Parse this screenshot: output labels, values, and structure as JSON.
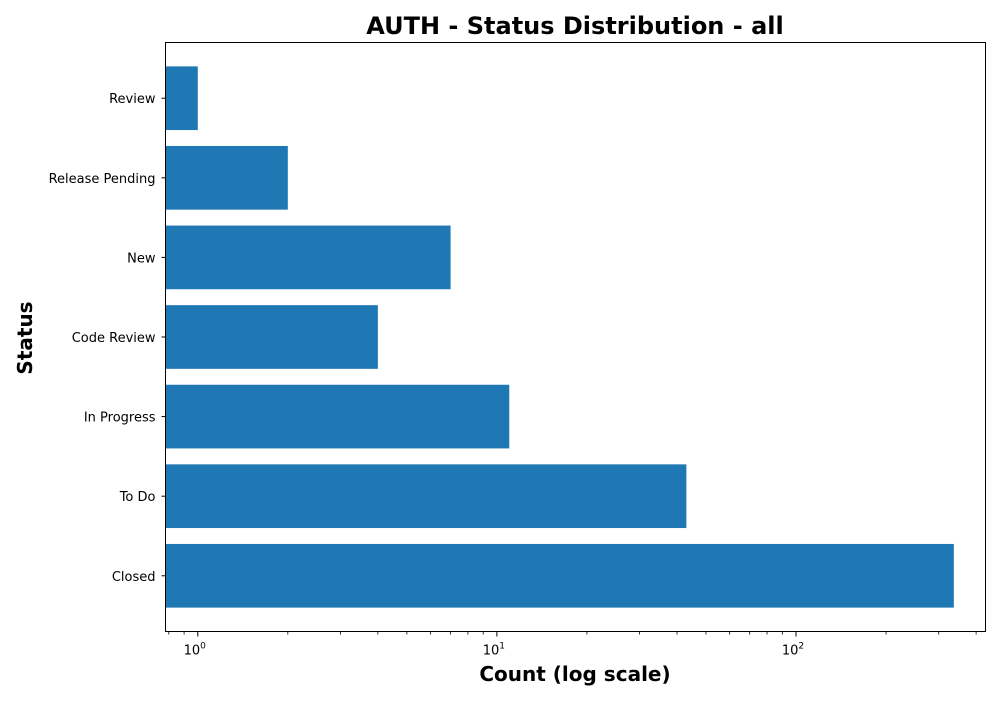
{
  "chart_data": {
    "type": "bar",
    "orientation": "horizontal",
    "title": "AUTH - Status Distribution - all",
    "xlabel": "Count (log scale)",
    "ylabel": "Status",
    "x_scale": "log",
    "xlim": [
      0.78,
      430
    ],
    "categories": [
      "Closed",
      "To Do",
      "In Progress",
      "Code Review",
      "New",
      "Release Pending",
      "Review"
    ],
    "values": [
      337,
      43,
      11,
      4,
      7,
      2,
      1
    ],
    "x_ticks": [
      {
        "value": 1,
        "base": "10",
        "exp": "0"
      },
      {
        "value": 10,
        "base": "10",
        "exp": "1"
      },
      {
        "value": 100,
        "base": "10",
        "exp": "2"
      }
    ],
    "bar_color": "#1f77b4",
    "grid": false,
    "legend": false
  }
}
